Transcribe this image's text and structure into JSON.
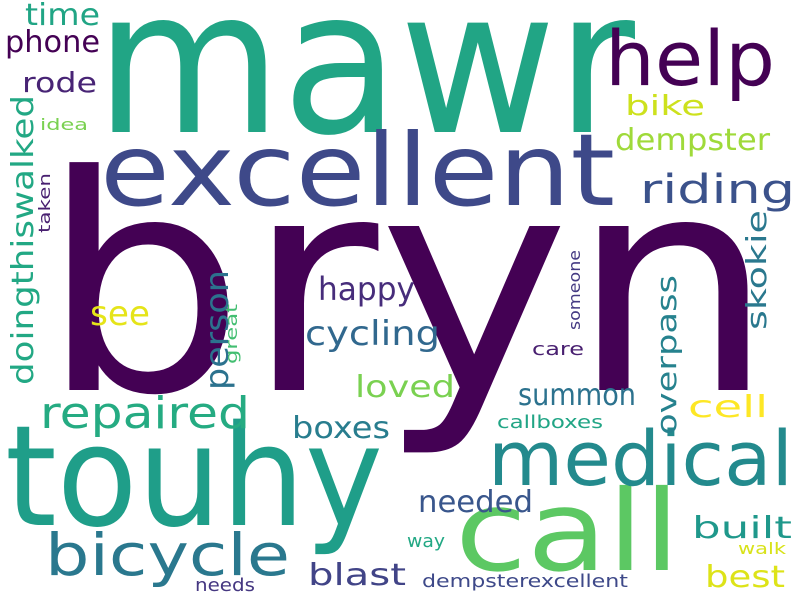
{
  "word_cloud": {
    "words": [
      {
        "text": "bryn",
        "color": "#440154"
      },
      {
        "text": "mawr",
        "color": "#21a585"
      },
      {
        "text": "touhy",
        "color": "#1f9e89"
      },
      {
        "text": "excellent",
        "color": "#3e4989"
      },
      {
        "text": "call",
        "color": "#5cc863"
      },
      {
        "text": "medical",
        "color": "#238a8d"
      },
      {
        "text": "help",
        "color": "#440154"
      },
      {
        "text": "bicycle",
        "color": "#2a788e"
      },
      {
        "text": "repaired",
        "color": "#25ab82"
      },
      {
        "text": "riding",
        "color": "#3b528b"
      },
      {
        "text": "cycling",
        "color": "#31688e"
      },
      {
        "text": "happy",
        "color": "#472d7b"
      },
      {
        "text": "dempster",
        "color": "#9fda3a"
      },
      {
        "text": "phone",
        "color": "#440154"
      },
      {
        "text": "time",
        "color": "#21a585"
      },
      {
        "text": "rode",
        "color": "#482475"
      },
      {
        "text": "bike",
        "color": "#cde11d"
      },
      {
        "text": "see",
        "color": "#e5e419"
      },
      {
        "text": "person",
        "color": "#2c728e"
      },
      {
        "text": "doingthiswalked",
        "color": "#22a884"
      },
      {
        "text": "loved",
        "color": "#7ad151"
      },
      {
        "text": "summon",
        "color": "#2c728e"
      },
      {
        "text": "boxes",
        "color": "#287d8e"
      },
      {
        "text": "needed",
        "color": "#39568c"
      },
      {
        "text": "built",
        "color": "#1f988b"
      },
      {
        "text": "blast",
        "color": "#414487"
      },
      {
        "text": "best",
        "color": "#dde318"
      },
      {
        "text": "cell",
        "color": "#fde725"
      },
      {
        "text": "overpass",
        "color": "#26828e"
      },
      {
        "text": "skokie",
        "color": "#2a788e"
      },
      {
        "text": "idea",
        "color": "#7ad151"
      },
      {
        "text": "taken",
        "color": "#481f70"
      },
      {
        "text": "great",
        "color": "#42be71"
      },
      {
        "text": "someone",
        "color": "#443a83"
      },
      {
        "text": "care",
        "color": "#481f70"
      },
      {
        "text": "callboxes",
        "color": "#21a585"
      },
      {
        "text": "way",
        "color": "#22a884"
      },
      {
        "text": "walk",
        "color": "#d8e219"
      },
      {
        "text": "needs",
        "color": "#453781"
      },
      {
        "text": "dempsterexcellent",
        "color": "#3e4989"
      }
    ]
  }
}
